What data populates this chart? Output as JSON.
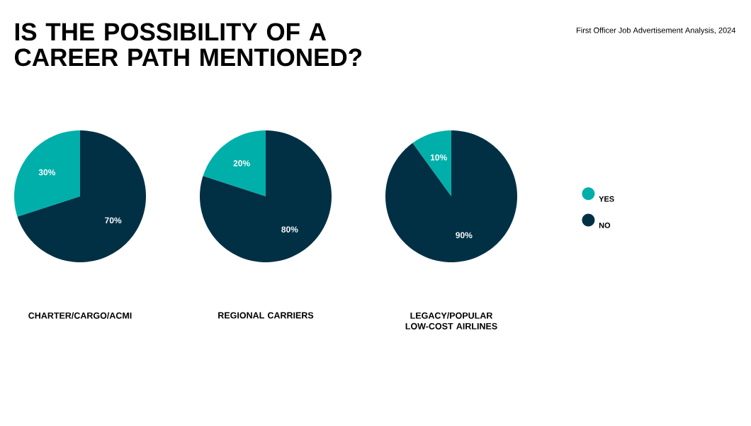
{
  "chart_data": [
    {
      "type": "pie",
      "title": "IS THE POSSIBILITY OF A CAREER PATH MENTIONED?",
      "xlabel": "CHARTER/CARGO/ACMI",
      "categories": [
        null,
        null
      ],
      "values": [
        30,
        70
      ],
      "colors": [
        "#00afa9",
        "#013045"
      ],
      "value_labels": [
        "30%",
        "70%"
      ]
    },
    {
      "type": "pie",
      "xlabel": "REGIONAL CARRIERS",
      "categories": [
        null,
        null
      ],
      "values": [
        20,
        80
      ],
      "colors": [
        "#00afa9",
        "#013045"
      ],
      "value_labels": [
        "20%",
        "80%"
      ]
    },
    {
      "type": "pie",
      "xlabel": "LEGACY/POPULAR LOW-COST AIRLINES",
      "categories": [
        "YES",
        "NO"
      ],
      "values": [
        10,
        90
      ],
      "colors": [
        "#00afa9",
        "#013045"
      ],
      "value_labels": [
        "10%",
        "90%"
      ],
      "legend": "right",
      "annotations": [
        "First Officer Job Advertisement Analysis, 2024"
      ]
    }
  ]
}
